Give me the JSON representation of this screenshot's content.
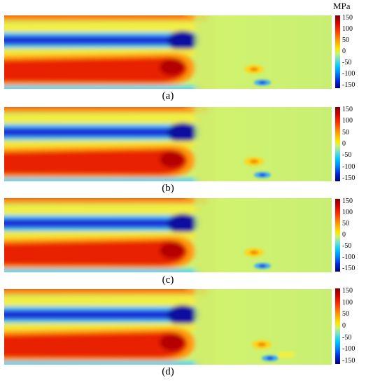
{
  "colorbar": {
    "unit": "MPa",
    "ticks": [
      "150",
      "100",
      "50",
      "0",
      "-50",
      "-100",
      "-150"
    ],
    "range": [
      -150,
      150
    ]
  },
  "panels": [
    {
      "label": "(a)"
    },
    {
      "label": "(b)"
    },
    {
      "label": "(c)"
    },
    {
      "label": "(d)"
    }
  ],
  "colors": {
    "background_field": "#c6ef72",
    "compression": "#1414c8",
    "tension": "#e81e00",
    "neutral": "#f4ef3c"
  }
}
